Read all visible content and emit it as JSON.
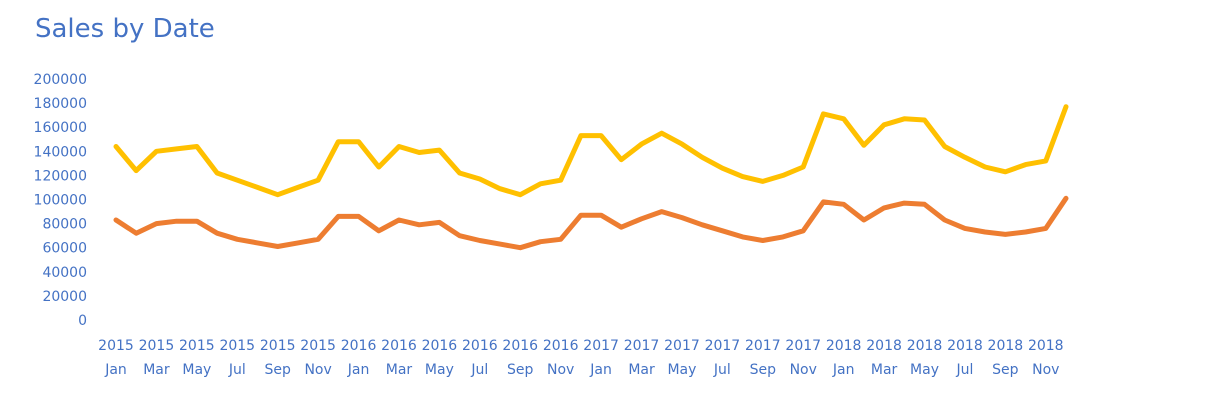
{
  "chart_data": {
    "type": "line",
    "title": "Sales by Date",
    "xlabel": "",
    "ylabel": "",
    "ylim": [
      0,
      200000
    ],
    "yticks": [
      "200000",
      "180000",
      "160000",
      "140000",
      "120000",
      "100000",
      "80000",
      "60000",
      "40000",
      "20000",
      "0"
    ],
    "grid": false,
    "legend": "none",
    "x_tick_labels": [
      {
        "year": "2015",
        "month": "Jan"
      },
      {
        "year": "2015",
        "month": "Mar"
      },
      {
        "year": "2015",
        "month": "May"
      },
      {
        "year": "2015",
        "month": "Jul"
      },
      {
        "year": "2015",
        "month": "Sep"
      },
      {
        "year": "2015",
        "month": "Nov"
      },
      {
        "year": "2016",
        "month": "Jan"
      },
      {
        "year": "2016",
        "month": "Mar"
      },
      {
        "year": "2016",
        "month": "May"
      },
      {
        "year": "2016",
        "month": "Jul"
      },
      {
        "year": "2016",
        "month": "Sep"
      },
      {
        "year": "2016",
        "month": "Nov"
      },
      {
        "year": "2017",
        "month": "Jan"
      },
      {
        "year": "2017",
        "month": "Mar"
      },
      {
        "year": "2017",
        "month": "May"
      },
      {
        "year": "2017",
        "month": "Jul"
      },
      {
        "year": "2017",
        "month": "Sep"
      },
      {
        "year": "2017",
        "month": "Nov"
      },
      {
        "year": "2018",
        "month": "Jan"
      },
      {
        "year": "2018",
        "month": "Mar"
      },
      {
        "year": "2018",
        "month": "May"
      },
      {
        "year": "2018",
        "month": "Jul"
      },
      {
        "year": "2018",
        "month": "Sep"
      },
      {
        "year": "2018",
        "month": "Nov"
      }
    ],
    "x": [
      "2015-01",
      "2015-02",
      "2015-03",
      "2015-04",
      "2015-05",
      "2015-06",
      "2015-07",
      "2015-08",
      "2015-09",
      "2015-10",
      "2015-11",
      "2015-12",
      "2016-01",
      "2016-02",
      "2016-03",
      "2016-04",
      "2016-05",
      "2016-06",
      "2016-07",
      "2016-08",
      "2016-09",
      "2016-10",
      "2016-11",
      "2016-12",
      "2017-01",
      "2017-02",
      "2017-03",
      "2017-04",
      "2017-05",
      "2017-06",
      "2017-07",
      "2017-08",
      "2017-09",
      "2017-10",
      "2017-11",
      "2017-12",
      "2018-01",
      "2018-02",
      "2018-03",
      "2018-04",
      "2018-05",
      "2018-06",
      "2018-07",
      "2018-08",
      "2018-09",
      "2018-10",
      "2018-11",
      "2018-12"
    ],
    "series": [
      {
        "color": "#ffc000",
        "values": [
          144000,
          124000,
          140000,
          142000,
          144000,
          122000,
          116000,
          110000,
          104000,
          110000,
          116000,
          148000,
          148000,
          127000,
          144000,
          139000,
          141000,
          122000,
          117000,
          109000,
          104000,
          113000,
          116000,
          153000,
          153000,
          133000,
          146000,
          155000,
          146000,
          135000,
          126000,
          119000,
          115000,
          120000,
          127000,
          171000,
          167000,
          145000,
          162000,
          167000,
          166000,
          144000,
          135000,
          127000,
          123000,
          129000,
          132000,
          177000
        ]
      },
      {
        "color": "#ed7d31",
        "values": [
          83000,
          72000,
          80000,
          82000,
          82000,
          72000,
          67000,
          64000,
          61000,
          64000,
          67000,
          86000,
          86000,
          74000,
          83000,
          79000,
          81000,
          70000,
          66000,
          63000,
          60000,
          65000,
          67000,
          87000,
          87000,
          77000,
          84000,
          90000,
          85000,
          79000,
          74000,
          69000,
          66000,
          69000,
          74000,
          98000,
          96000,
          83000,
          93000,
          97000,
          96000,
          83000,
          76000,
          73000,
          71000,
          73000,
          76000,
          101000
        ]
      }
    ]
  }
}
